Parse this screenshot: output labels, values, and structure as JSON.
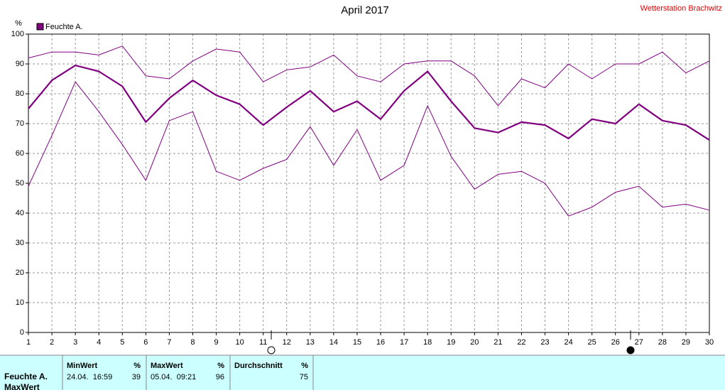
{
  "chart_data": {
    "type": "line",
    "title": "April 2017",
    "station": "Wetterstation Brachwitz",
    "ylabel": "%",
    "legend": "Feuchte A.",
    "legend_color": "#800080",
    "x": [
      1,
      2,
      3,
      4,
      5,
      6,
      7,
      8,
      9,
      10,
      11,
      12,
      13,
      14,
      15,
      16,
      17,
      18,
      19,
      20,
      21,
      22,
      23,
      24,
      25,
      26,
      27,
      28,
      29,
      30
    ],
    "xlim": [
      1,
      30
    ],
    "xticks": [
      1,
      2,
      3,
      4,
      5,
      6,
      7,
      8,
      9,
      10,
      11,
      12,
      13,
      14,
      15,
      16,
      17,
      18,
      19,
      20,
      21,
      22,
      23,
      24,
      25,
      26,
      27,
      28,
      29,
      30
    ],
    "ylim": [
      0,
      100
    ],
    "yticks": [
      0,
      10,
      20,
      30,
      40,
      50,
      60,
      70,
      80,
      90,
      100
    ],
    "grid": true,
    "series": [
      {
        "color": "#800080",
        "width": 1,
        "values": [
          92,
          94,
          94,
          93,
          96,
          86,
          85,
          91,
          95,
          94,
          84,
          88,
          89,
          93,
          86,
          84,
          90,
          91,
          91,
          86,
          76,
          85,
          82,
          90,
          85,
          90,
          90,
          94,
          87,
          91
        ]
      },
      {
        "color": "#800080",
        "width": 2.2,
        "values": [
          75,
          84.5,
          89.5,
          87.5,
          82.5,
          70.5,
          78.5,
          84.5,
          79.5,
          76.5,
          69.5,
          75.5,
          81,
          74,
          77.5,
          71.5,
          81,
          87.5,
          77.5,
          68.5,
          67,
          70.5,
          69.5,
          65,
          71.5,
          70,
          76.5,
          71,
          69.5,
          64.5
        ]
      },
      {
        "color": "#800080",
        "width": 1,
        "values": [
          49,
          66,
          84,
          74,
          63,
          51,
          71,
          74,
          54,
          51,
          55,
          58,
          69,
          56,
          68,
          51,
          56,
          76,
          59,
          48,
          53,
          54,
          50,
          39,
          42,
          47,
          49,
          42,
          43,
          41
        ]
      }
    ]
  },
  "table": {
    "headers": [
      "MinWert",
      "%",
      "MaxWert",
      "%",
      "Durchschnitt",
      "%"
    ],
    "rows": [
      [
        "Feuchte A.",
        "24.04.  16:59",
        39,
        "05.04.  09:21",
        96,
        75
      ]
    ],
    "next_row": "MaxWert"
  }
}
